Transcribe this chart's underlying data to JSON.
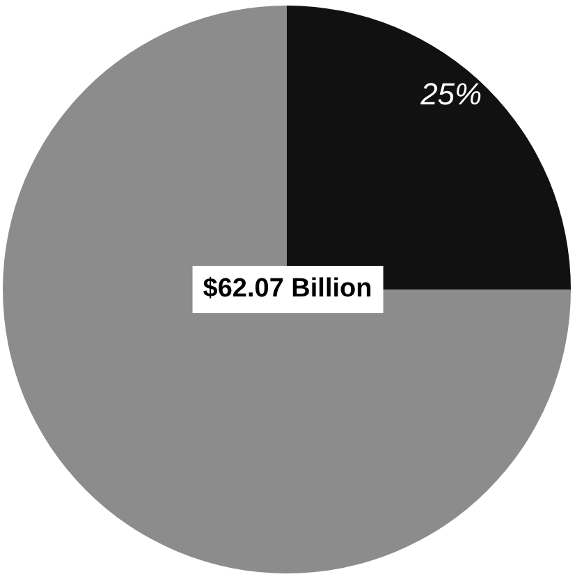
{
  "chart_data": {
    "type": "pie",
    "categories": [
      null,
      null
    ],
    "values": [
      25,
      75
    ],
    "colors": [
      "#111111",
      "#8c8c8c"
    ],
    "value_labels": [
      "25%",
      null
    ],
    "annotations": [
      "$62.07 Billion"
    ]
  }
}
